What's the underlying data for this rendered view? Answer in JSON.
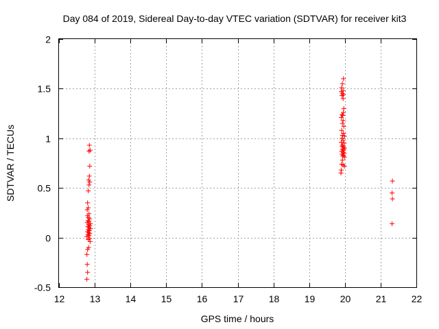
{
  "chart_data": {
    "type": "scatter",
    "title": "Day 084 of 2019, Sidereal Day-to-day VTEC variation (SDTVAR) for receiver kit3",
    "xlabel": "GPS time / hours",
    "ylabel": "SDTVAR / TECUs",
    "xlim": [
      12,
      22
    ],
    "ylim": [
      -0.5,
      2
    ],
    "xticks": [
      "12",
      "13",
      "14",
      "15",
      "16",
      "17",
      "18",
      "19",
      "20",
      "21",
      "22"
    ],
    "yticks": [
      "-0.5",
      "0",
      "0.5",
      "1",
      "1.5",
      "2"
    ],
    "grid": true,
    "legend": "none",
    "marker": "+",
    "color": "#ff0000",
    "points": [
      [
        12.85,
        0.93
      ],
      [
        12.87,
        0.88
      ],
      [
        12.84,
        0.87
      ],
      [
        12.86,
        0.72
      ],
      [
        12.85,
        0.62
      ],
      [
        12.83,
        0.58
      ],
      [
        12.86,
        0.56
      ],
      [
        12.84,
        0.53
      ],
      [
        12.82,
        0.47
      ],
      [
        12.8,
        0.35
      ],
      [
        12.82,
        0.3
      ],
      [
        12.79,
        0.28
      ],
      [
        12.84,
        0.24
      ],
      [
        12.8,
        0.22
      ],
      [
        12.82,
        0.2
      ],
      [
        12.86,
        0.19
      ],
      [
        12.81,
        0.17
      ],
      [
        12.84,
        0.16
      ],
      [
        12.79,
        0.15
      ],
      [
        12.88,
        0.14
      ],
      [
        12.83,
        0.13
      ],
      [
        12.86,
        0.12
      ],
      [
        12.81,
        0.11
      ],
      [
        12.84,
        0.1
      ],
      [
        12.88,
        0.09
      ],
      [
        12.82,
        0.08
      ],
      [
        12.85,
        0.07
      ],
      [
        12.8,
        0.06
      ],
      [
        12.83,
        0.05
      ],
      [
        12.86,
        0.04
      ],
      [
        12.81,
        0.03
      ],
      [
        12.84,
        0.02
      ],
      [
        12.78,
        0.01
      ],
      [
        12.86,
        -0.01
      ],
      [
        12.82,
        -0.02
      ],
      [
        12.87,
        -0.04
      ],
      [
        12.83,
        -0.1
      ],
      [
        12.8,
        -0.12
      ],
      [
        12.78,
        -0.17
      ],
      [
        12.79,
        -0.27
      ],
      [
        12.8,
        -0.35
      ],
      [
        12.78,
        -0.42
      ],
      [
        19.96,
        1.6
      ],
      [
        19.93,
        1.55
      ],
      [
        19.91,
        1.51
      ],
      [
        19.95,
        1.48
      ],
      [
        19.9,
        1.47
      ],
      [
        19.93,
        1.45
      ],
      [
        19.96,
        1.44
      ],
      [
        19.92,
        1.43
      ],
      [
        19.95,
        1.4
      ],
      [
        19.97,
        1.3
      ],
      [
        19.96,
        1.26
      ],
      [
        19.92,
        1.24
      ],
      [
        19.94,
        1.23
      ],
      [
        19.9,
        1.21
      ],
      [
        19.95,
        1.18
      ],
      [
        19.93,
        1.15
      ],
      [
        19.97,
        1.12
      ],
      [
        19.91,
        1.08
      ],
      [
        19.96,
        1.05
      ],
      [
        19.93,
        1.03
      ],
      [
        19.99,
        1.02
      ],
      [
        19.92,
        1.0
      ],
      [
        19.95,
        0.98
      ],
      [
        19.9,
        0.96
      ],
      [
        19.98,
        0.95
      ],
      [
        19.94,
        0.93
      ],
      [
        19.92,
        0.92
      ],
      [
        19.96,
        0.91
      ],
      [
        19.99,
        0.9
      ],
      [
        19.93,
        0.89
      ],
      [
        19.97,
        0.88
      ],
      [
        19.91,
        0.87
      ],
      [
        19.95,
        0.86
      ],
      [
        19.98,
        0.85
      ],
      [
        19.92,
        0.84
      ],
      [
        19.96,
        0.83
      ],
      [
        19.94,
        0.82
      ],
      [
        19.99,
        0.81
      ],
      [
        19.93,
        0.78
      ],
      [
        19.91,
        0.74
      ],
      [
        19.95,
        0.73
      ],
      [
        19.99,
        0.72
      ],
      [
        19.9,
        0.68
      ],
      [
        19.89,
        0.65
      ],
      [
        21.33,
        0.57
      ],
      [
        21.32,
        0.45
      ],
      [
        21.33,
        0.39
      ],
      [
        21.32,
        0.14
      ]
    ]
  }
}
